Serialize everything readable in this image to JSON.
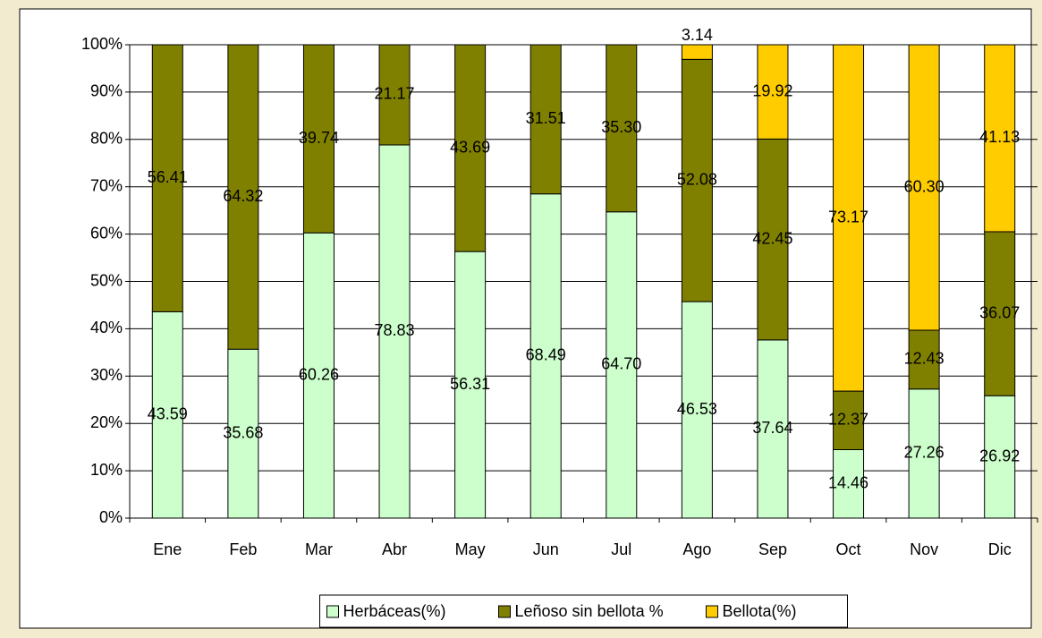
{
  "chart_data": {
    "type": "stacked_percent_bar",
    "categories": [
      "Ene",
      "Feb",
      "Mar",
      "Abr",
      "May",
      "Jun",
      "Jul",
      "Ago",
      "Sep",
      "Oct",
      "Nov",
      "Dic"
    ],
    "series": [
      {
        "name": "Herbáceas(%)",
        "color": "#ccffcc",
        "values": [
          43.59,
          35.68,
          60.26,
          78.83,
          56.31,
          68.49,
          64.7,
          46.53,
          37.64,
          14.46,
          27.26,
          26.92
        ],
        "value_labels": [
          "43.59",
          "35.68",
          "60.26",
          "78.83",
          "56.31",
          "68.49",
          "64.70",
          "46.53",
          "37.64",
          "14.46",
          "27.26",
          "26.92"
        ]
      },
      {
        "name": "Leñoso sin bellota %",
        "color": "#808000",
        "values": [
          56.41,
          64.32,
          39.74,
          21.17,
          43.69,
          31.51,
          35.3,
          52.08,
          42.45,
          12.37,
          12.43,
          36.07
        ],
        "value_labels": [
          "56.41",
          "64.32",
          "39.74",
          "21.17",
          "43.69",
          "31.51",
          "35.30",
          "52.08",
          "42.45",
          "12.37",
          "12.43",
          "36.07"
        ]
      },
      {
        "name": "Bellota(%)",
        "color": "#ffcc00",
        "values": [
          null,
          null,
          null,
          null,
          null,
          null,
          null,
          3.14,
          19.92,
          73.17,
          60.3,
          41.13
        ],
        "value_labels": [
          null,
          null,
          null,
          null,
          null,
          null,
          null,
          "3.14",
          "19.92",
          "73.17",
          "60.30",
          "41.13"
        ]
      }
    ],
    "ylim": [
      0,
      100
    ],
    "yticks": [
      {
        "value": 0,
        "label": "0%"
      },
      {
        "value": 10,
        "label": "10%"
      },
      {
        "value": 20,
        "label": "20%"
      },
      {
        "value": 30,
        "label": "30%"
      },
      {
        "value": 40,
        "label": "40%"
      },
      {
        "value": 50,
        "label": "50%"
      },
      {
        "value": 60,
        "label": "60%"
      },
      {
        "value": 70,
        "label": "70%"
      },
      {
        "value": 80,
        "label": "80%"
      },
      {
        "value": 90,
        "label": "90%"
      },
      {
        "value": 100,
        "label": "100%"
      }
    ],
    "grid": true,
    "legend": "bottom"
  }
}
